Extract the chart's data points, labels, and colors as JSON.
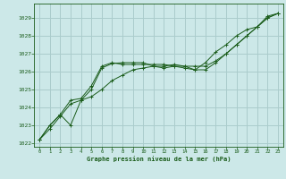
{
  "title": "Graphe pression niveau de la mer (hPa)",
  "background_color": "#cce8e8",
  "grid_color": "#aacccc",
  "line_color": "#1a5c1a",
  "xlim": [
    -0.5,
    23.5
  ],
  "ylim": [
    1021.8,
    1029.8
  ],
  "yticks": [
    1022,
    1023,
    1024,
    1025,
    1026,
    1027,
    1028,
    1029
  ],
  "xticks": [
    0,
    1,
    2,
    3,
    4,
    5,
    6,
    7,
    8,
    9,
    10,
    11,
    12,
    13,
    14,
    15,
    16,
    17,
    18,
    19,
    20,
    21,
    22,
    23
  ],
  "series": [
    [
      1022.2,
      1023.0,
      1023.6,
      1023.0,
      1024.4,
      1025.0,
      1026.2,
      1026.45,
      1026.5,
      1026.5,
      1026.5,
      1026.3,
      1026.2,
      1026.3,
      1026.2,
      1026.1,
      1026.5,
      1027.1,
      1027.5,
      1028.0,
      1028.35,
      1028.5,
      1029.1,
      1029.25
    ],
    [
      1022.2,
      1023.0,
      1023.6,
      1024.4,
      1024.5,
      1025.2,
      1026.3,
      1026.5,
      1026.4,
      1026.4,
      1026.4,
      1026.4,
      1026.4,
      1026.3,
      1026.3,
      1026.1,
      1026.1,
      1026.5,
      1027.0,
      1027.5,
      1028.0,
      1028.5,
      1029.0,
      1029.25
    ],
    [
      1022.2,
      1022.8,
      1023.5,
      1024.2,
      1024.4,
      1024.6,
      1025.0,
      1025.5,
      1025.8,
      1026.1,
      1026.2,
      1026.3,
      1026.3,
      1026.4,
      1026.3,
      1026.3,
      1026.3,
      1026.6,
      1027.0,
      1027.5,
      1028.0,
      1028.5,
      1029.0,
      1029.25
    ]
  ]
}
